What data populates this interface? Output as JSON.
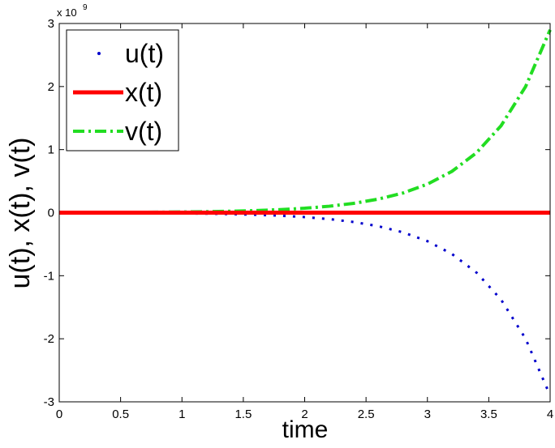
{
  "chart_data": {
    "type": "line",
    "xlabel": "time",
    "ylabel": "u(t), x(t), v(t)",
    "y_multiplier": {
      "base": "x 10",
      "exponent": "9"
    },
    "x": [
      0,
      0.2,
      0.4,
      0.6,
      0.8,
      1.0,
      1.2,
      1.4,
      1.6,
      1.8,
      2.0,
      2.2,
      2.4,
      2.6,
      2.8,
      3.0,
      3.2,
      3.4,
      3.6,
      3.8,
      4.0
    ],
    "series": [
      {
        "name": "u(t)",
        "color": "#0000cc",
        "style": "dotted",
        "values": [
          -0.0017,
          -0.0025,
          -0.0036,
          -0.0052,
          -0.0075,
          -0.011,
          -0.016,
          -0.023,
          -0.033,
          -0.048,
          -0.07,
          -0.102,
          -0.148,
          -0.215,
          -0.311,
          -0.452,
          -0.655,
          -0.95,
          -1.378,
          -1.999,
          -2.9
        ]
      },
      {
        "name": "x(t)",
        "color": "#ff0000",
        "style": "solid",
        "values": [
          0,
          0,
          0,
          0,
          0,
          0,
          0,
          0,
          0,
          0,
          0,
          0,
          0,
          0,
          0,
          0,
          0,
          0,
          0,
          0,
          0
        ]
      },
      {
        "name": "v(t)",
        "color": "#22dd22",
        "style": "dashdot",
        "values": [
          0.0017,
          0.0025,
          0.0036,
          0.0052,
          0.0075,
          0.011,
          0.016,
          0.023,
          0.033,
          0.048,
          0.07,
          0.102,
          0.148,
          0.215,
          0.311,
          0.452,
          0.655,
          0.95,
          1.378,
          1.999,
          2.9
        ]
      }
    ],
    "xlim": [
      0,
      4
    ],
    "xticks": [
      0,
      0.5,
      1,
      1.5,
      2,
      2.5,
      3,
      3.5,
      4
    ],
    "ylim": [
      -3,
      3
    ],
    "yticks": [
      -3,
      -2,
      -1,
      0,
      1,
      2,
      3
    ],
    "grid": false,
    "legend": "upper-left"
  }
}
